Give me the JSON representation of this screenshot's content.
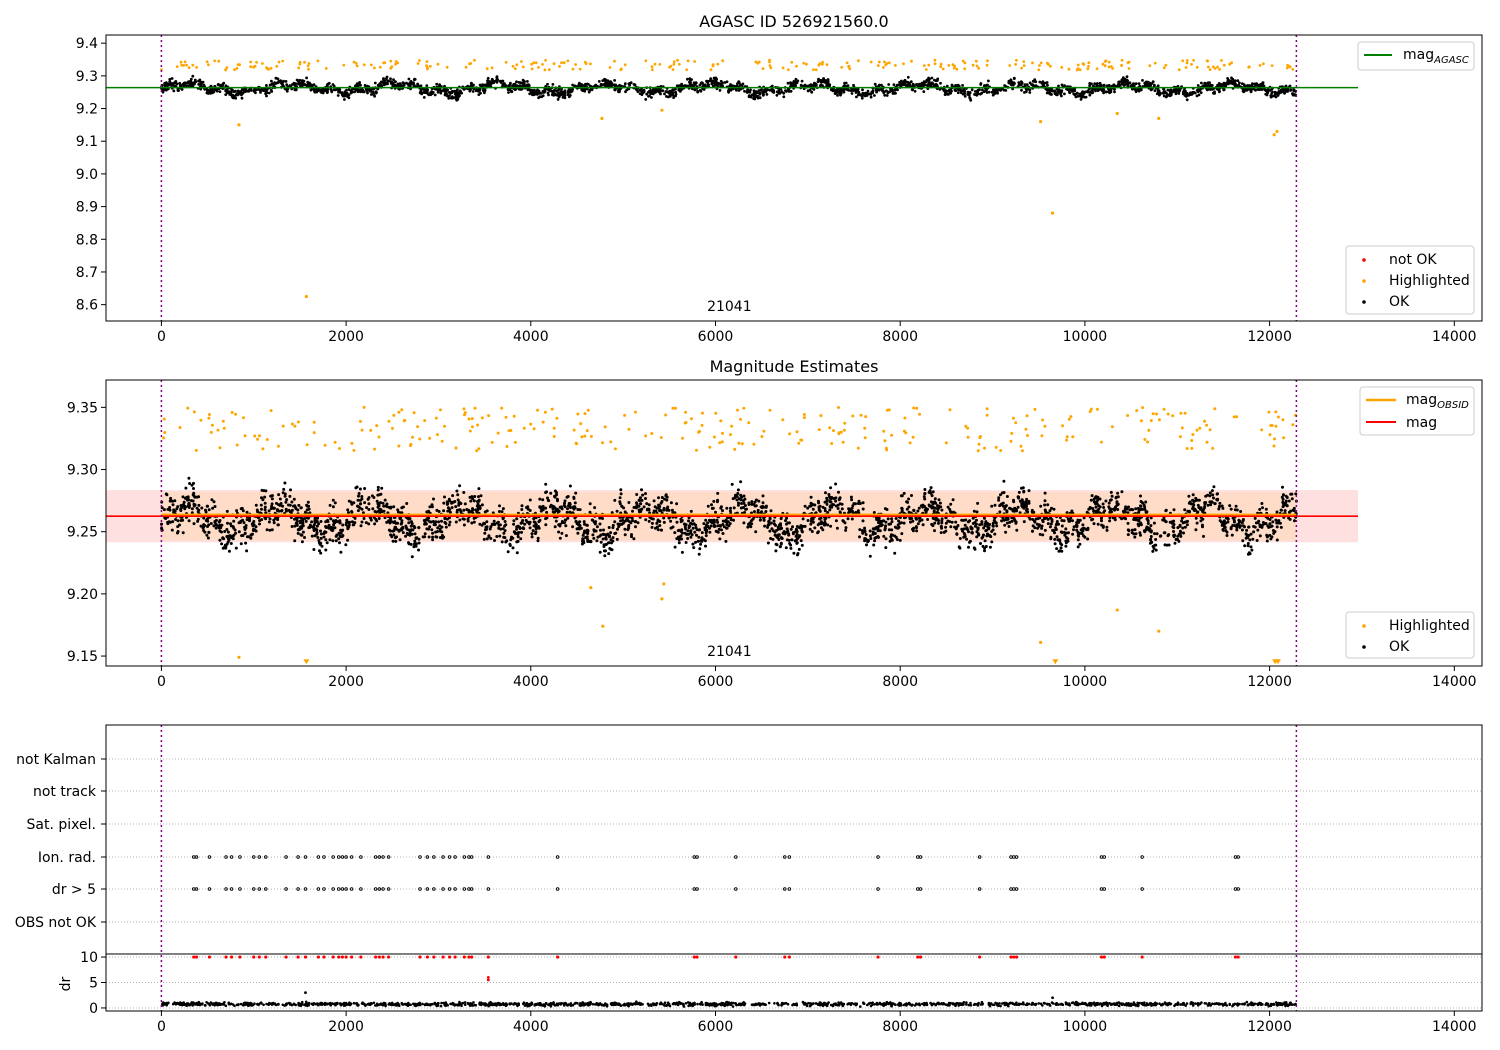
{
  "colors": {
    "ok": "#000000",
    "highlighted": "#ffa500",
    "not_ok": "#ff0000",
    "agasc_line": "#008000",
    "mag_line": "#ff0000",
    "obsid_line": "#ffa500",
    "band_fill": "#ffd5d5",
    "band_fill_obsid": "#ffd9b8",
    "boundary": "#800080",
    "grid": "#b0b0b0"
  },
  "chart_data": [
    {
      "type": "scatter",
      "title": "AGASC ID 526921560.0",
      "xlim": [
        -600,
        14300
      ],
      "ylim": [
        8.55,
        9.425
      ],
      "xticks": [
        0,
        2000,
        4000,
        6000,
        8000,
        10000,
        12000,
        14000
      ],
      "yticks": [
        "8.6",
        "8.7",
        "8.8",
        "8.9",
        "9.0",
        "9.1",
        "9.2",
        "9.3",
        "9.4"
      ],
      "obsid_label": "21041",
      "obsid_label_x": 6150,
      "boundaries": [
        0,
        12290
      ],
      "series": [
        {
          "name": "not OK",
          "color": "#ff0000",
          "points": []
        },
        {
          "name": "Highlighted",
          "color": "#ffa500",
          "outliers": [
            [
              840,
              9.15
            ],
            [
              1570,
              8.625
            ],
            [
              4770,
              9.17
            ],
            [
              5420,
              9.195
            ],
            [
              9520,
              9.16
            ],
            [
              9650,
              8.88
            ],
            [
              10350,
              9.185
            ],
            [
              10800,
              9.17
            ],
            [
              12050,
              9.12
            ],
            [
              12080,
              9.13
            ]
          ]
        },
        {
          "name": "OK",
          "color": "#000000",
          "mean": 9.262,
          "spread": 0.022
        }
      ],
      "reference_lines": [
        {
          "name": "mag_AGASC",
          "label_base": "mag",
          "label_sub": "AGASC",
          "value": 9.264,
          "color": "#008000"
        }
      ],
      "legends": [
        {
          "position": "upper-right",
          "entries": [
            {
              "label_base": "mag",
              "label_sub": "AGASC",
              "kind": "line",
              "color": "#008000"
            }
          ]
        },
        {
          "position": "lower-right",
          "entries": [
            {
              "label": "not OK",
              "kind": "dot",
              "color": "#ff0000"
            },
            {
              "label": "Highlighted",
              "kind": "dot",
              "color": "#ffa500"
            },
            {
              "label": "OK",
              "kind": "dot",
              "color": "#000000"
            }
          ]
        }
      ]
    },
    {
      "type": "scatter",
      "title": "Magnitude Estimates",
      "xlim": [
        -600,
        14300
      ],
      "ylim": [
        9.142,
        9.372
      ],
      "xticks": [
        0,
        2000,
        4000,
        6000,
        8000,
        10000,
        12000,
        14000
      ],
      "yticks": [
        "9.15",
        "9.20",
        "9.25",
        "9.30",
        "9.35"
      ],
      "obsid_label": "21041",
      "obsid_label_x": 6150,
      "boundaries": [
        0,
        12290
      ],
      "reference_lines": [
        {
          "name": "mag_OBSID",
          "label_base": "mag",
          "label_sub": "OBSID",
          "value": 9.2635,
          "color": "#ffa500"
        },
        {
          "name": "mag",
          "label_base": "mag",
          "value": 9.2625,
          "color": "#ff0000"
        }
      ],
      "band": {
        "low": 9.2415,
        "high": 9.2835
      },
      "series": [
        {
          "name": "Highlighted",
          "color": "#ffa500",
          "outliers": [
            [
              840,
              9.149
            ],
            [
              1570,
              9.145
            ],
            [
              4650,
              9.205
            ],
            [
              4780,
              9.174
            ],
            [
              5420,
              9.196
            ],
            [
              5440,
              9.208
            ],
            [
              9520,
              9.161
            ],
            [
              9680,
              9.145
            ],
            [
              10350,
              9.187
            ],
            [
              10800,
              9.17
            ],
            [
              12060,
              9.145
            ],
            [
              12090,
              9.145
            ]
          ]
        },
        {
          "name": "OK",
          "color": "#000000",
          "mean": 9.26,
          "spread": 0.02
        }
      ],
      "legends": [
        {
          "position": "upper-right",
          "entries": [
            {
              "label_base": "mag",
              "label_sub": "OBSID",
              "kind": "line",
              "color": "#ffa500"
            },
            {
              "label": "mag",
              "kind": "line",
              "color": "#ff0000"
            }
          ]
        },
        {
          "position": "lower-right",
          "entries": [
            {
              "label": "Highlighted",
              "kind": "dot",
              "color": "#ffa500"
            },
            {
              "label": "OK",
              "kind": "dot",
              "color": "#000000"
            }
          ]
        }
      ]
    },
    {
      "type": "scatter",
      "title": "",
      "xlim": [
        -600,
        14300
      ],
      "flag_rows": [
        "not Kalman",
        "not track",
        "Sat. pixel.",
        "Ion. rad.",
        "dr > 5",
        "OBS not OK"
      ],
      "flag_events_x": [
        350,
        380,
        520,
        700,
        760,
        850,
        1000,
        1060,
        1130,
        1350,
        1480,
        1560,
        1700,
        1760,
        1860,
        1920,
        1960,
        2000,
        2060,
        2160,
        2320,
        2360,
        2400,
        2460,
        2800,
        2880,
        2950,
        3050,
        3120,
        3180,
        3280,
        3330,
        3360,
        3540,
        4290,
        5770,
        5800,
        6220,
        6750,
        6800,
        7760,
        8190,
        8220,
        8860,
        9200,
        9230,
        9260,
        10180,
        10210,
        10620,
        11630,
        11660
      ],
      "flag_rows_with_events": [
        "Ion. rad.",
        "dr > 5"
      ],
      "dr_panel": {
        "ylabel": "dr",
        "yticks": [
          "0",
          "5",
          "10"
        ],
        "ylim": [
          -0.6,
          10.6
        ],
        "baseline_mean": 0.75,
        "events_value": 10,
        "extra_points": [
          [
            1560,
            3.0
          ],
          [
            3540,
            5.5
          ],
          [
            3540,
            6.0
          ],
          [
            9650,
            2.0
          ]
        ]
      }
    }
  ]
}
